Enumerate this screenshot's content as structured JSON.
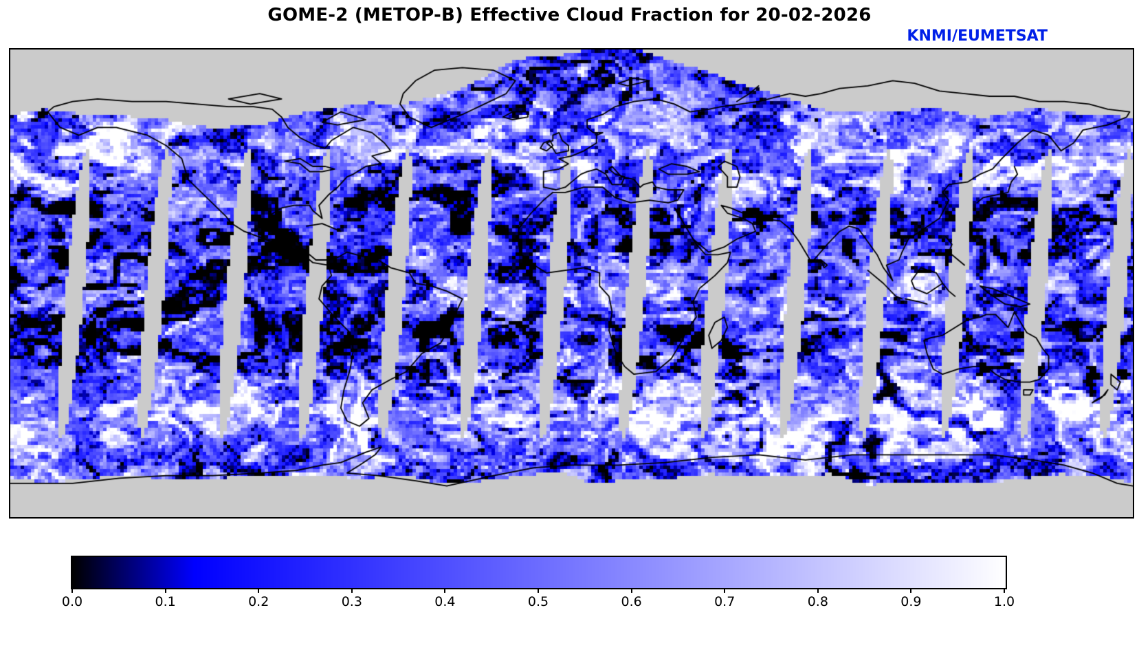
{
  "header": {
    "title": "GOME-2 (METOP-B) Effective Cloud Fraction for 20-02-2026",
    "credit": "KNMI/EUMETSAT"
  },
  "colors": {
    "credit_blue": "#0020e8",
    "figure_background": "#ffffff"
  },
  "chart_data": {
    "type": "heatmap",
    "title": "GOME-2 (METOP-B) Effective Cloud Fraction for 20-02-2026",
    "credit": "KNMI/EUMETSAT",
    "variable": "effective cloud fraction",
    "date": "20-02-2026",
    "instrument": "GOME-2 (METOP-B)",
    "projection": "equirectangular",
    "lon_range": [
      -180,
      180
    ],
    "lat_range": [
      -90,
      90
    ],
    "value_range": [
      0,
      1
    ],
    "map": {
      "no_data_color": "#cbcbcb",
      "coastline_color": "#000000",
      "swath_count": 14,
      "features": [
        "world coastlines drawn in black over gridded satellite data",
        "14 polar-orbit swaths with lens-shaped grey no-data gaps between orbits at low/mid latitudes",
        "no data (grey) over high northern latitudes and Antarctica interior",
        "low cloud fraction appears black/dark blue, high cloud fraction appears white"
      ]
    },
    "colorbar": {
      "orientation": "horizontal",
      "ticks": [
        0,
        0.1,
        0.2,
        0.3,
        0.4,
        0.5,
        0.6,
        0.7,
        0.8,
        0.9,
        1.0
      ],
      "tick_labels": [
        "0.0",
        "0.1",
        "0.2",
        "0.3",
        "0.4",
        "0.5",
        "0.6",
        "0.7",
        "0.8",
        "0.9",
        "1.0"
      ],
      "colormap_stops": [
        {
          "value": 0.0,
          "color": "#000000"
        },
        {
          "value": 0.13,
          "color": "#0000ff"
        },
        {
          "value": 1.0,
          "color": "#ffffff"
        }
      ]
    }
  }
}
